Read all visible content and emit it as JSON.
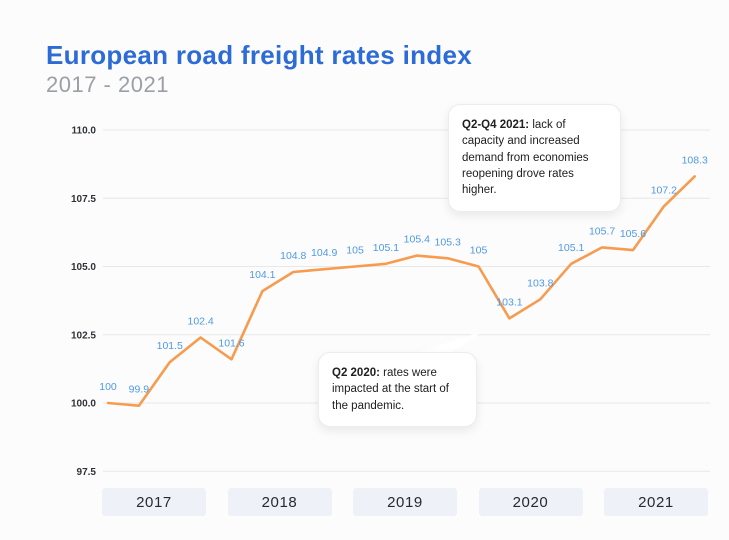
{
  "header": {
    "title": "European road freight rates index",
    "subtitle": "2017 - 2021"
  },
  "chart_data": {
    "type": "line",
    "title": "European road freight rates index",
    "subtitle": "2017 - 2021",
    "x_unit": "quarter",
    "categories": [
      "2017",
      "2018",
      "2019",
      "2020",
      "2021"
    ],
    "points_per_category": 4,
    "values": [
      100,
      99.9,
      101.5,
      102.4,
      101.6,
      104.1,
      104.8,
      104.9,
      105,
      105.1,
      105.4,
      105.3,
      105,
      103.1,
      103.8,
      105.1,
      105.7,
      105.6,
      107.2,
      108.3
    ],
    "point_labels": [
      "100",
      "99.9",
      "101.5",
      "102.4",
      "101.6",
      "104.1",
      "104.8",
      "104.9",
      "105",
      "105.1",
      "105.4",
      "105.3",
      "105",
      "103.1",
      "103.8",
      "105.1",
      "105.7",
      "105.6",
      "107.2",
      "108.3"
    ],
    "y_ticks": [
      {
        "value": 110,
        "label": "110.0"
      },
      {
        "value": 107.5,
        "label": "107.5"
      },
      {
        "value": 105,
        "label": "105.0"
      },
      {
        "value": 102.5,
        "label": "102.5"
      },
      {
        "value": 100,
        "label": "100.0"
      },
      {
        "value": 97.5,
        "label": "97.5"
      }
    ],
    "ylim": [
      97.5,
      110
    ],
    "grid": true,
    "legend": "none",
    "annotations": [
      {
        "bold": "Q2-Q4 2021:",
        "text": " lack of capacity and increased demand from economies reopening drove rates higher.",
        "points_to": "Q2-Q4 2021"
      },
      {
        "bold": "Q2 2020:",
        "text": " rates were impacted at the start of the pandemic.",
        "points_to": "Q2 2020"
      }
    ]
  },
  "colors": {
    "title": "#2D6BD6",
    "subtitle": "#9B9FA6",
    "line": "#F79B4F",
    "point_label": "#4F9AE5",
    "gridline": "#E8E8E8",
    "y_tick": "#2F3237",
    "year_box_bg": "#EEF2F8",
    "year_text": "#262A31",
    "background": "#FCFCFC"
  }
}
